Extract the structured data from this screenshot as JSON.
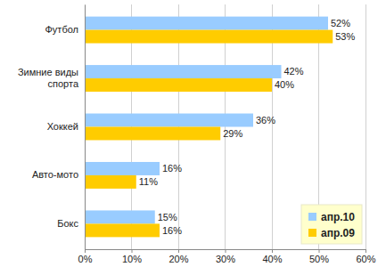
{
  "chart_data": {
    "type": "bar",
    "orientation": "horizontal",
    "categories": [
      "Футбол",
      "Зимние виды спорта",
      "Хоккей",
      "Авто-мото",
      "Бокс"
    ],
    "series": [
      {
        "name": "апр.10",
        "color": "#99ccff",
        "values": [
          52,
          42,
          36,
          16,
          15
        ],
        "value_labels": [
          "52%",
          "42%",
          "36%",
          "16%",
          "15%"
        ]
      },
      {
        "name": "апр.09",
        "color": "#ffcc00",
        "values": [
          53,
          40,
          29,
          11,
          16
        ],
        "value_labels": [
          "53%",
          "40%",
          "29%",
          "11%",
          "16%"
        ]
      }
    ],
    "xlim": [
      0,
      60
    ],
    "xticks": [
      {
        "value": 0,
        "label": "0%"
      },
      {
        "value": 10,
        "label": "10%"
      },
      {
        "value": 20,
        "label": "20%"
      },
      {
        "value": 30,
        "label": "30%"
      },
      {
        "value": 40,
        "label": "40%"
      },
      {
        "value": 50,
        "label": "50%"
      },
      {
        "value": 60,
        "label": "60%"
      }
    ],
    "grid": true,
    "data_labels": true,
    "legend": "lower right"
  }
}
